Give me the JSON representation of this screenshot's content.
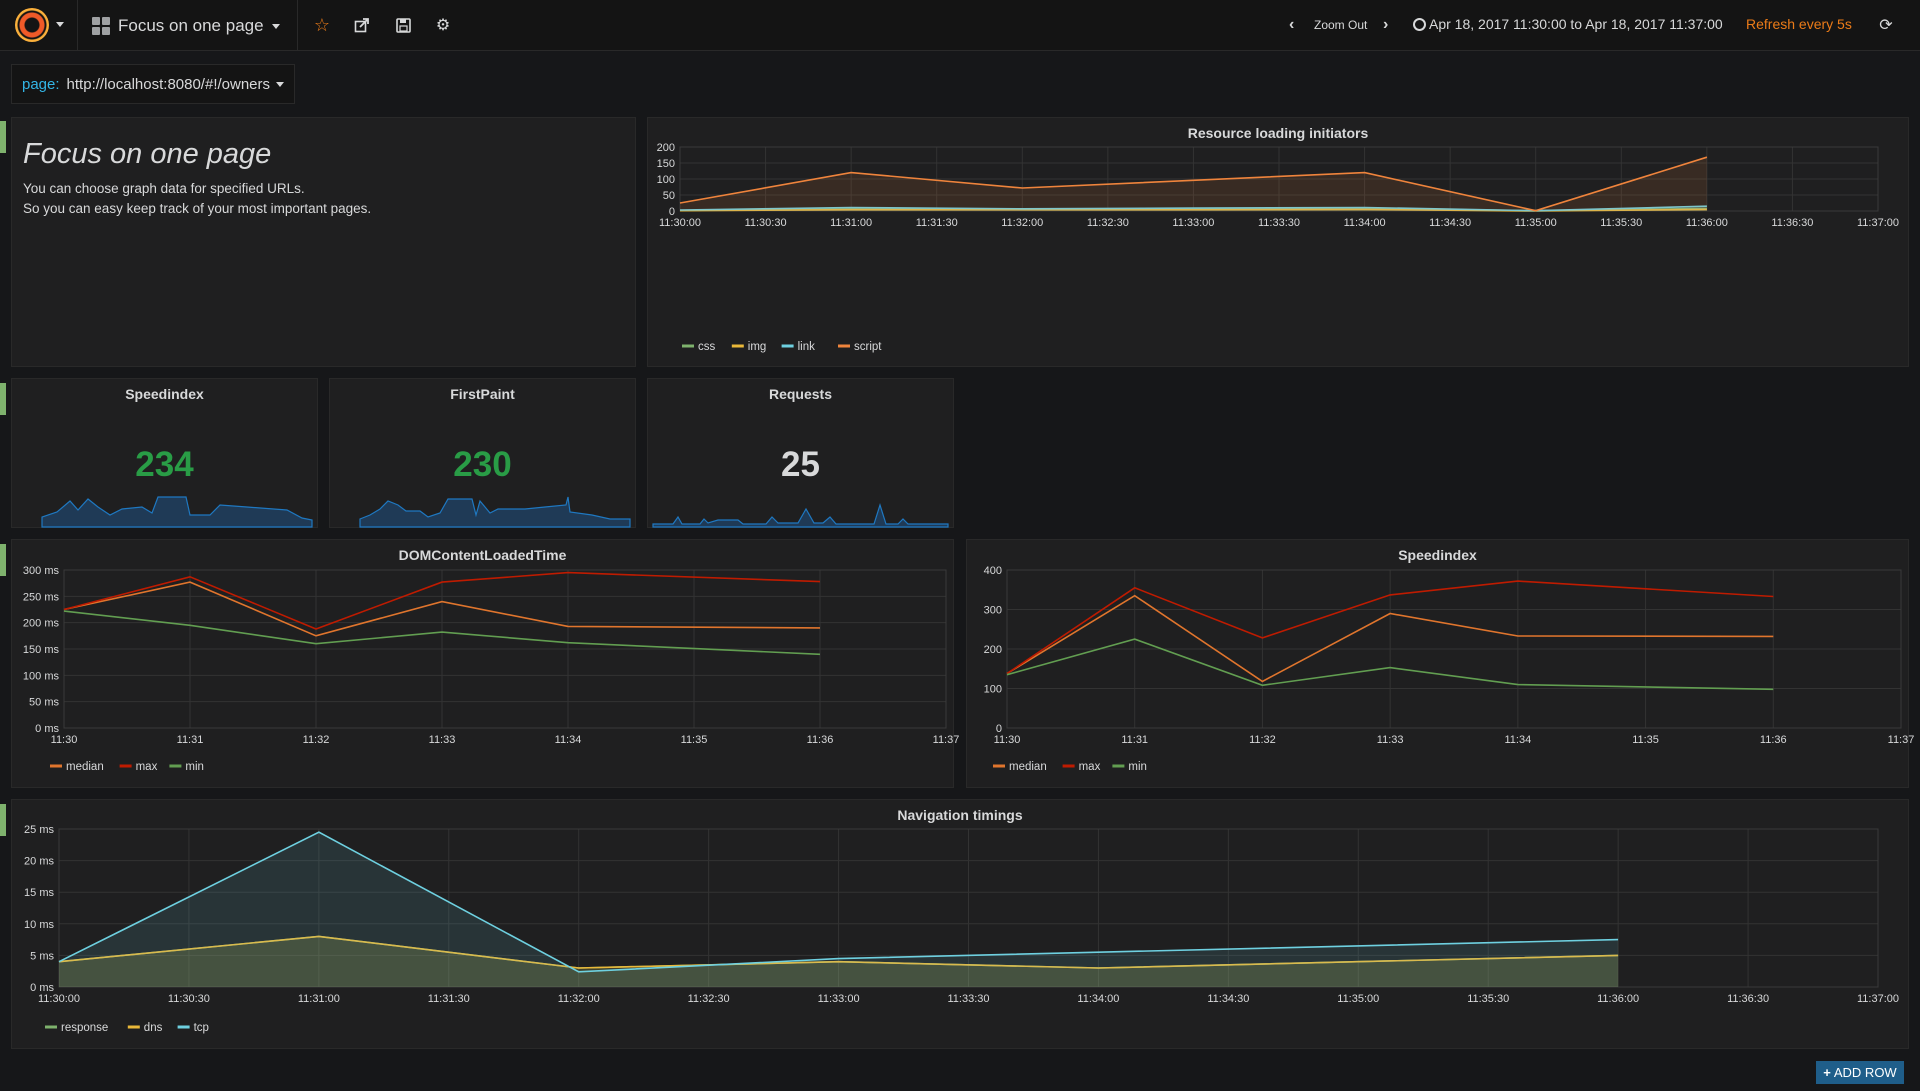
{
  "nav": {
    "dashboard_title": "Focus on one page",
    "zoom_out": "Zoom Out",
    "time_range": "Apr 18, 2017 11:30:00 to Apr 18, 2017 11:37:00",
    "refresh": "Refresh every 5s"
  },
  "template_var": {
    "label": "page:",
    "value": "http://localhost:8080/#!/owners"
  },
  "text_panel": {
    "title": "Focus on one page",
    "line1": "You can choose graph data for specified URLs.",
    "line2": "So you can easy keep track of your most important pages."
  },
  "stats": [
    {
      "title": "Speedindex",
      "value": "234",
      "color": "#299c46"
    },
    {
      "title": "FirstPaint",
      "value": "230",
      "color": "#299c46"
    },
    {
      "title": "Requests",
      "value": "25",
      "color": "#d8d9da"
    }
  ],
  "add_row": "ADD ROW",
  "chart_data": [
    {
      "type": "area",
      "title": "Resource loading initiators",
      "x": [
        "11:30:00",
        "11:30:30",
        "11:31:00",
        "11:31:30",
        "11:32:00",
        "11:32:30",
        "11:33:00",
        "11:33:30",
        "11:34:00",
        "11:34:30",
        "11:35:00",
        "11:35:30",
        "11:36:00",
        "11:36:30",
        "11:37:00"
      ],
      "ylim": [
        0,
        200
      ],
      "yticks": [
        "0",
        "50",
        "100",
        "150",
        "200"
      ],
      "series": [
        {
          "name": "css",
          "color": "#7eb26d",
          "points": [
            [
              0,
              2
            ],
            [
              2,
              7
            ],
            [
              4,
              6
            ],
            [
              6,
              7
            ],
            [
              8,
              8
            ],
            [
              10,
              1
            ],
            [
              12,
              8
            ]
          ]
        },
        {
          "name": "img",
          "color": "#eab839",
          "points": [
            [
              0,
              1
            ],
            [
              2,
              4
            ],
            [
              4,
              4
            ],
            [
              6,
              4
            ],
            [
              8,
              5
            ],
            [
              10,
              0
            ],
            [
              12,
              5
            ]
          ]
        },
        {
          "name": "link",
          "color": "#6ed0e0",
          "points": [
            [
              0,
              3
            ],
            [
              2,
              11
            ],
            [
              4,
              7
            ],
            [
              6,
              9
            ],
            [
              8,
              11
            ],
            [
              10,
              1
            ],
            [
              12,
              15
            ]
          ]
        },
        {
          "name": "script",
          "color": "#ef843c",
          "points": [
            [
              0,
              25
            ],
            [
              2,
              120
            ],
            [
              4,
              72
            ],
            [
              6,
              96
            ],
            [
              8,
              120
            ],
            [
              10,
              1
            ],
            [
              12,
              168
            ]
          ]
        }
      ]
    },
    {
      "type": "line",
      "title": "DOMContentLoadedTime",
      "x": [
        "11:30",
        "11:31",
        "11:32",
        "11:33",
        "11:34",
        "11:35",
        "11:36",
        "11:37"
      ],
      "ylim": [
        0,
        300
      ],
      "yticks": [
        "0 ms",
        "50 ms",
        "100 ms",
        "150 ms",
        "200 ms",
        "250 ms",
        "300 ms"
      ],
      "series": [
        {
          "name": "median",
          "color": "#e0752d",
          "points": [
            [
              0,
              225
            ],
            [
              1,
              277
            ],
            [
              2,
              175
            ],
            [
              3,
              240
            ],
            [
              4,
              193
            ],
            [
              6,
              190
            ]
          ]
        },
        {
          "name": "max",
          "color": "#bf1b00",
          "points": [
            [
              0,
              225
            ],
            [
              1,
              287
            ],
            [
              2,
              188
            ],
            [
              3,
              277
            ],
            [
              4,
              295
            ],
            [
              6,
              278
            ]
          ]
        },
        {
          "name": "min",
          "color": "#629e51",
          "points": [
            [
              0,
              222
            ],
            [
              1,
              195
            ],
            [
              2,
              160
            ],
            [
              3,
              182
            ],
            [
              4,
              162
            ],
            [
              6,
              140
            ]
          ]
        }
      ]
    },
    {
      "type": "line",
      "title": "Speedindex",
      "x": [
        "11:30",
        "11:31",
        "11:32",
        "11:33",
        "11:34",
        "11:35",
        "11:36",
        "11:37"
      ],
      "ylim": [
        0,
        400
      ],
      "yticks": [
        "0",
        "100",
        "200",
        "300",
        "400"
      ],
      "series": [
        {
          "name": "median",
          "color": "#e0752d",
          "points": [
            [
              0,
              138
            ],
            [
              1,
              335
            ],
            [
              2,
              118
            ],
            [
              3,
              290
            ],
            [
              4,
              233
            ],
            [
              6,
              232
            ]
          ]
        },
        {
          "name": "max",
          "color": "#bf1b00",
          "points": [
            [
              0,
              138
            ],
            [
              1,
              355
            ],
            [
              2,
              228
            ],
            [
              3,
              337
            ],
            [
              4,
              372
            ],
            [
              6,
              333
            ]
          ]
        },
        {
          "name": "min",
          "color": "#629e51",
          "points": [
            [
              0,
              135
            ],
            [
              1,
              225
            ],
            [
              2,
              108
            ],
            [
              3,
              153
            ],
            [
              4,
              110
            ],
            [
              6,
              98
            ]
          ]
        }
      ]
    },
    {
      "type": "area",
      "title": "Navigation timings",
      "x": [
        "11:30:00",
        "11:30:30",
        "11:31:00",
        "11:31:30",
        "11:32:00",
        "11:32:30",
        "11:33:00",
        "11:33:30",
        "11:34:00",
        "11:34:30",
        "11:35:00",
        "11:35:30",
        "11:36:00",
        "11:36:30",
        "11:37:00"
      ],
      "ylim": [
        0,
        25
      ],
      "yticks": [
        "0 ms",
        "5 ms",
        "10 ms",
        "15 ms",
        "20 ms",
        "25 ms"
      ],
      "series": [
        {
          "name": "response",
          "color": "#7eb26d",
          "points": [
            [
              0,
              4
            ],
            [
              2,
              8
            ],
            [
              4,
              3
            ],
            [
              6,
              4
            ],
            [
              8,
              3
            ],
            [
              12,
              5
            ]
          ]
        },
        {
          "name": "dns",
          "color": "#eab839",
          "points": [
            [
              0,
              4
            ],
            [
              2,
              8
            ],
            [
              4,
              3
            ],
            [
              6,
              4
            ],
            [
              8,
              3
            ],
            [
              12,
              5
            ]
          ]
        },
        {
          "name": "tcp",
          "color": "#6ed0e0",
          "points": [
            [
              0,
              4
            ],
            [
              2,
              24.5
            ],
            [
              4,
              2.4
            ],
            [
              6,
              4.5
            ],
            [
              8,
              5.5
            ],
            [
              12,
              7.5
            ]
          ]
        }
      ]
    }
  ]
}
